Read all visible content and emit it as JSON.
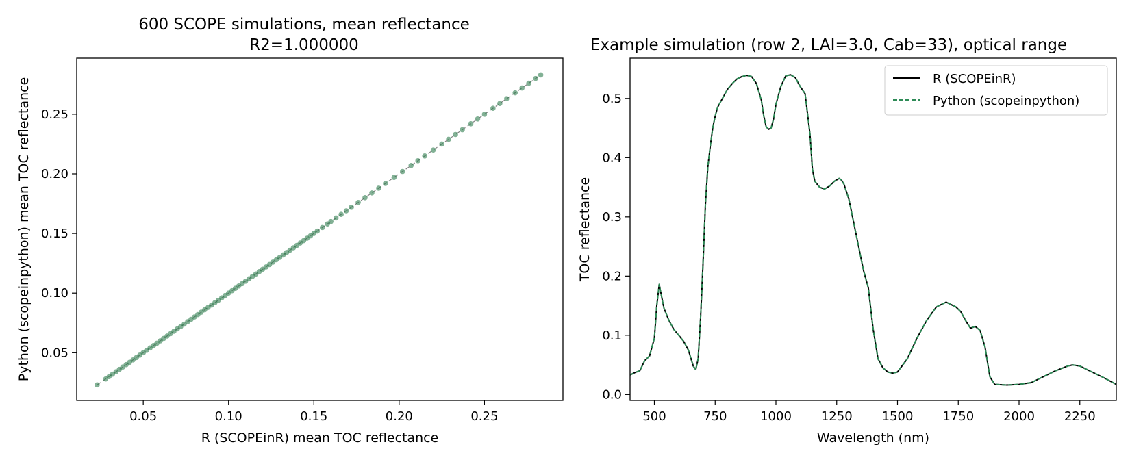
{
  "chart_data": [
    {
      "type": "scatter",
      "title": "600 SCOPE simulations, mean reflectance",
      "subtitle": "R2=1.000000",
      "xlabel": "R (SCOPEinR) mean TOC reflectance",
      "ylabel": "Python (scopeinpython) mean TOC reflectance",
      "xlim": [
        0.011,
        0.296
      ],
      "ylim": [
        0.01,
        0.297
      ],
      "xticks": [
        0.05,
        0.1,
        0.15,
        0.2,
        0.25
      ],
      "xtick_labels": [
        "0.05",
        "0.10",
        "0.15",
        "0.20",
        "0.25"
      ],
      "yticks": [
        0.05,
        0.1,
        0.15,
        0.2,
        0.25
      ],
      "ytick_labels": [
        "0.05",
        "0.10",
        "0.15",
        "0.20",
        "0.25"
      ],
      "grid": false,
      "point_color": "#2e7d4f",
      "identity_line": {
        "from": [
          0.023,
          0.023
        ],
        "to": [
          0.283,
          0.283
        ],
        "style": "dashed",
        "color": "#808080"
      },
      "series": [
        {
          "x": [
            0.023,
            0.028,
            0.03,
            0.032,
            0.034,
            0.036,
            0.038,
            0.04,
            0.042,
            0.044,
            0.046,
            0.048,
            0.05,
            0.052,
            0.054,
            0.056,
            0.058,
            0.06,
            0.062,
            0.064,
            0.066,
            0.068,
            0.07,
            0.072,
            0.074,
            0.076,
            0.078,
            0.08,
            0.082,
            0.084,
            0.086,
            0.088,
            0.09,
            0.092,
            0.094,
            0.096,
            0.098,
            0.1,
            0.102,
            0.104,
            0.106,
            0.108,
            0.11,
            0.112,
            0.114,
            0.116,
            0.118,
            0.12,
            0.122,
            0.124,
            0.126,
            0.128,
            0.13,
            0.132,
            0.134,
            0.136,
            0.138,
            0.14,
            0.142,
            0.144,
            0.146,
            0.148,
            0.15,
            0.152,
            0.155,
            0.158,
            0.16,
            0.163,
            0.166,
            0.169,
            0.172,
            0.176,
            0.18,
            0.184,
            0.188,
            0.192,
            0.197,
            0.202,
            0.207,
            0.211,
            0.215,
            0.22,
            0.225,
            0.229,
            0.233,
            0.237,
            0.242,
            0.246,
            0.25,
            0.255,
            0.259,
            0.263,
            0.268,
            0.272,
            0.276,
            0.28,
            0.283
          ],
          "y": [
            0.023,
            0.028,
            0.03,
            0.032,
            0.034,
            0.036,
            0.038,
            0.04,
            0.042,
            0.044,
            0.046,
            0.048,
            0.05,
            0.052,
            0.054,
            0.056,
            0.058,
            0.06,
            0.062,
            0.064,
            0.066,
            0.068,
            0.07,
            0.072,
            0.074,
            0.076,
            0.078,
            0.08,
            0.082,
            0.084,
            0.086,
            0.088,
            0.09,
            0.092,
            0.094,
            0.096,
            0.098,
            0.1,
            0.102,
            0.104,
            0.106,
            0.108,
            0.11,
            0.112,
            0.114,
            0.116,
            0.118,
            0.12,
            0.122,
            0.124,
            0.126,
            0.128,
            0.13,
            0.132,
            0.134,
            0.136,
            0.138,
            0.14,
            0.142,
            0.144,
            0.146,
            0.148,
            0.15,
            0.152,
            0.155,
            0.158,
            0.16,
            0.163,
            0.166,
            0.169,
            0.172,
            0.176,
            0.18,
            0.184,
            0.188,
            0.192,
            0.197,
            0.202,
            0.207,
            0.211,
            0.215,
            0.22,
            0.225,
            0.229,
            0.233,
            0.237,
            0.242,
            0.246,
            0.25,
            0.255,
            0.259,
            0.263,
            0.268,
            0.272,
            0.276,
            0.28,
            0.283
          ]
        }
      ]
    },
    {
      "type": "line",
      "title": "Example simulation (row 2, LAI=3.0, Cab=33), optical range",
      "xlabel": "Wavelength (nm)",
      "ylabel": "TOC reflectance",
      "xlim": [
        400,
        2400
      ],
      "ylim": [
        -0.01,
        0.568
      ],
      "xticks": [
        500,
        750,
        1000,
        1250,
        1500,
        1750,
        2000,
        2250
      ],
      "xtick_labels": [
        "500",
        "750",
        "1000",
        "1250",
        "1500",
        "1750",
        "2000",
        "2250"
      ],
      "yticks": [
        0.0,
        0.1,
        0.2,
        0.3,
        0.4,
        0.5
      ],
      "ytick_labels": [
        "0.0",
        "0.1",
        "0.2",
        "0.3",
        "0.4",
        "0.5"
      ],
      "grid": false,
      "legend": {
        "placement": "top-right",
        "entries": [
          {
            "label": "R (SCOPEinR)",
            "color": "#000000",
            "style": "solid"
          },
          {
            "label": "Python (scopeinpython)",
            "color": "#2e8b57",
            "style": "dashed"
          }
        ]
      },
      "x": [
        400,
        420,
        440,
        460,
        480,
        500,
        510,
        520,
        530,
        540,
        550,
        560,
        580,
        600,
        620,
        640,
        660,
        670,
        680,
        690,
        700,
        710,
        720,
        730,
        740,
        750,
        760,
        780,
        800,
        820,
        840,
        860,
        880,
        900,
        920,
        940,
        950,
        960,
        970,
        980,
        990,
        1000,
        1020,
        1040,
        1060,
        1080,
        1100,
        1120,
        1140,
        1150,
        1160,
        1180,
        1200,
        1220,
        1240,
        1260,
        1270,
        1280,
        1300,
        1320,
        1340,
        1360,
        1380,
        1400,
        1420,
        1440,
        1460,
        1480,
        1500,
        1540,
        1580,
        1620,
        1660,
        1700,
        1740,
        1760,
        1780,
        1800,
        1820,
        1840,
        1860,
        1880,
        1900,
        1950,
        2000,
        2050,
        2100,
        2150,
        2200,
        2220,
        2250,
        2300,
        2350,
        2400
      ],
      "series": [
        {
          "name": "R (SCOPEinR)",
          "values": [
            0.033,
            0.037,
            0.04,
            0.057,
            0.065,
            0.095,
            0.15,
            0.186,
            0.165,
            0.145,
            0.135,
            0.125,
            0.11,
            0.1,
            0.09,
            0.075,
            0.048,
            0.042,
            0.06,
            0.13,
            0.22,
            0.32,
            0.385,
            0.42,
            0.45,
            0.47,
            0.485,
            0.5,
            0.515,
            0.525,
            0.533,
            0.537,
            0.539,
            0.537,
            0.525,
            0.497,
            0.47,
            0.452,
            0.448,
            0.45,
            0.465,
            0.49,
            0.52,
            0.538,
            0.54,
            0.535,
            0.52,
            0.508,
            0.44,
            0.38,
            0.36,
            0.35,
            0.347,
            0.352,
            0.36,
            0.365,
            0.362,
            0.355,
            0.33,
            0.29,
            0.25,
            0.21,
            0.18,
            0.11,
            0.06,
            0.045,
            0.038,
            0.036,
            0.038,
            0.06,
            0.095,
            0.125,
            0.148,
            0.156,
            0.148,
            0.14,
            0.125,
            0.112,
            0.115,
            0.108,
            0.08,
            0.03,
            0.017,
            0.016,
            0.017,
            0.02,
            0.03,
            0.04,
            0.048,
            0.05,
            0.048,
            0.038,
            0.028,
            0.017
          ]
        },
        {
          "name": "Python (scopeinpython)",
          "values": [
            0.033,
            0.037,
            0.04,
            0.057,
            0.065,
            0.095,
            0.15,
            0.186,
            0.165,
            0.145,
            0.135,
            0.125,
            0.11,
            0.1,
            0.09,
            0.075,
            0.048,
            0.042,
            0.06,
            0.13,
            0.22,
            0.32,
            0.385,
            0.42,
            0.45,
            0.47,
            0.485,
            0.5,
            0.515,
            0.525,
            0.533,
            0.537,
            0.539,
            0.537,
            0.525,
            0.497,
            0.47,
            0.452,
            0.448,
            0.45,
            0.465,
            0.49,
            0.52,
            0.538,
            0.54,
            0.535,
            0.52,
            0.508,
            0.44,
            0.38,
            0.36,
            0.35,
            0.347,
            0.352,
            0.36,
            0.365,
            0.362,
            0.355,
            0.33,
            0.29,
            0.25,
            0.21,
            0.18,
            0.11,
            0.06,
            0.045,
            0.038,
            0.036,
            0.038,
            0.06,
            0.095,
            0.125,
            0.148,
            0.156,
            0.148,
            0.14,
            0.125,
            0.112,
            0.115,
            0.108,
            0.08,
            0.03,
            0.017,
            0.016,
            0.017,
            0.02,
            0.03,
            0.04,
            0.048,
            0.05,
            0.048,
            0.038,
            0.028,
            0.017
          ]
        }
      ]
    }
  ]
}
